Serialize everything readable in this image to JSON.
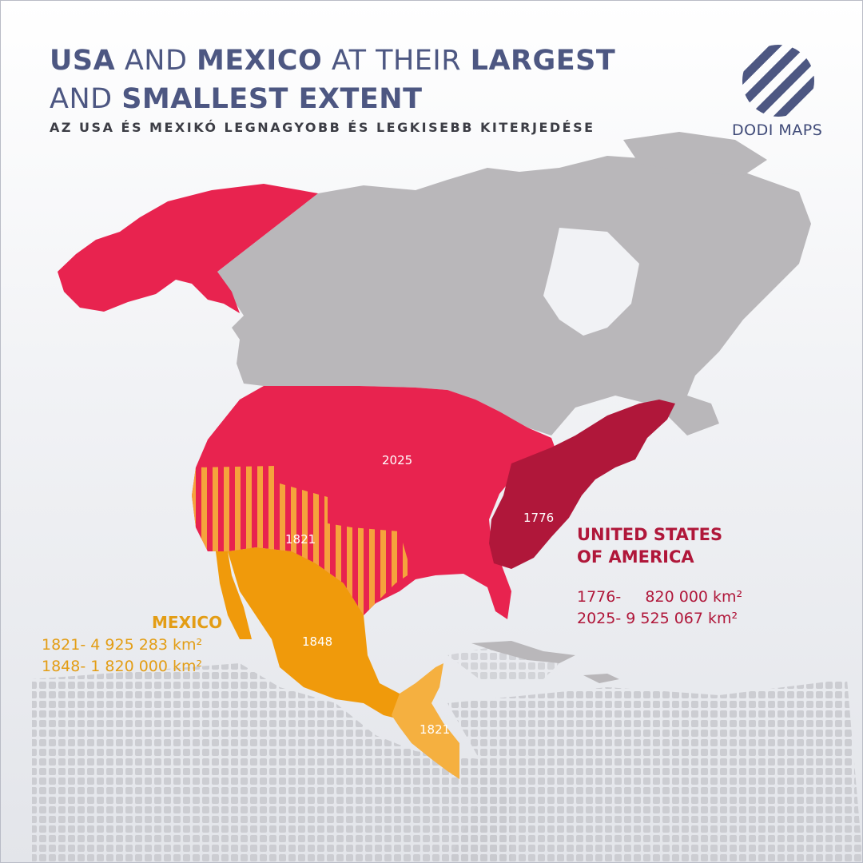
{
  "title": {
    "part1": "USA",
    "part2": " AND ",
    "part3": "MEXICO",
    "part4": " AT THEIR ",
    "part5": "LARGEST",
    "part6": "AND ",
    "part7": "SMALLEST EXTENT"
  },
  "subtitle": "AZ USA ÉS MEXIKÓ LEGNAGYOBB ÉS LEGKISEBB KITERJEDÉSE",
  "logo": {
    "text": "DODI MAPS",
    "icon": "striped-circle-logo"
  },
  "map_labels": {
    "usa_2025": "2025",
    "usa_1776": "1776",
    "mexico_1821": "1821",
    "mexico_1848": "1848",
    "central_america_1821": "1821"
  },
  "legend": {
    "usa": {
      "title_line1": "UNITED STATES",
      "title_line2": "OF AMERICA",
      "rows": [
        {
          "year": "1776-",
          "area": "820 000 km²"
        },
        {
          "year": "2025-",
          "area": "9 525 067 km²"
        }
      ]
    },
    "mexico": {
      "title": "MEXICO",
      "rows": [
        {
          "year": "1821-",
          "area": "4 925 283 km²"
        },
        {
          "year": "1848-",
          "area": "1 820 000 km²"
        }
      ]
    }
  },
  "colors": {
    "usa_2025": "#e8234f",
    "usa_1776": "#b0173a",
    "mexico_1848": "#f09a0b",
    "mexico_1821": "#f5b040",
    "other_land": "#b9b7ba",
    "title": "#4d5782"
  }
}
